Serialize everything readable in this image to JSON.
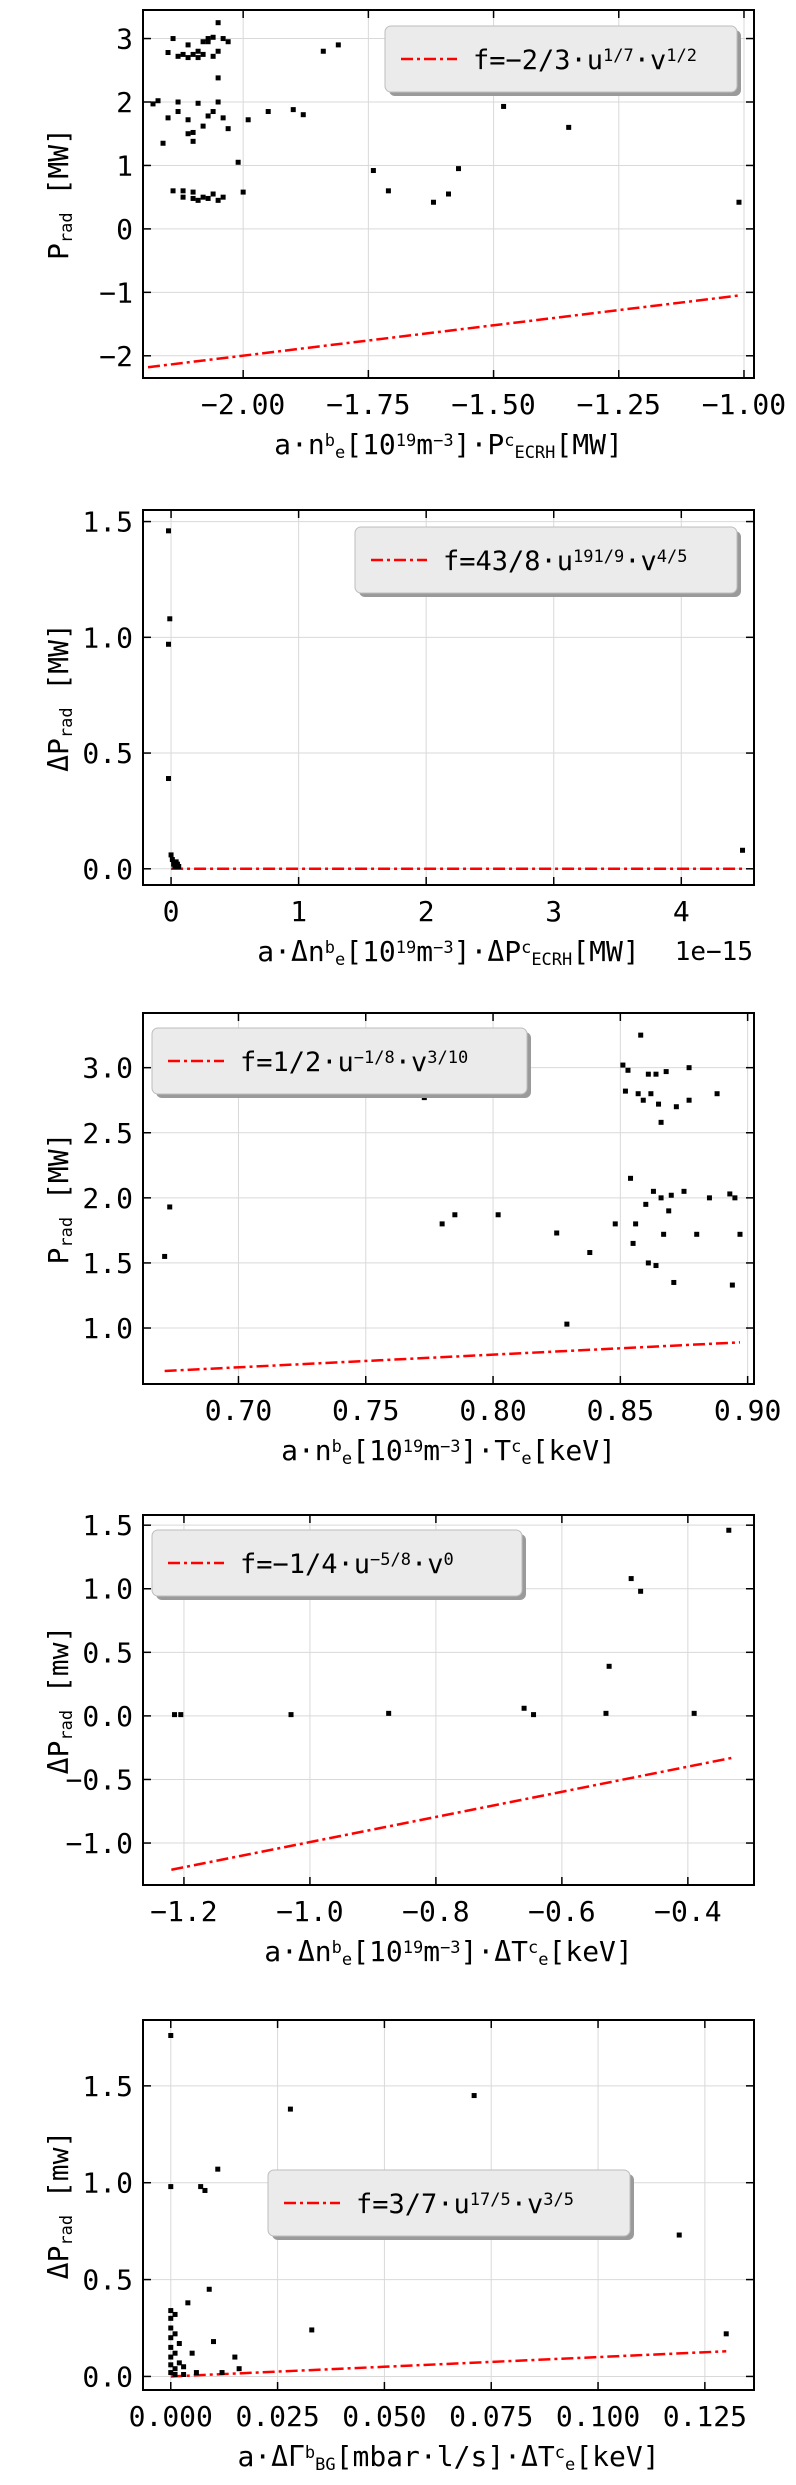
{
  "chart_data": [
    {
      "type": "scatter",
      "title": "",
      "xlabel": {
        "parts": [
          [
            "t",
            "a·n"
          ],
          [
            "sup",
            "b"
          ],
          [
            "sub",
            "e"
          ],
          [
            "t",
            "[10"
          ],
          [
            "sup",
            "19"
          ],
          [
            "t",
            "m"
          ],
          [
            "sup",
            "−3"
          ],
          [
            "t",
            "]·P"
          ],
          [
            "sup",
            "c"
          ],
          [
            "sub",
            "ECRH"
          ],
          [
            "t",
            "[MW]"
          ]
        ]
      },
      "ylabel": {
        "parts": [
          [
            "t",
            "P"
          ],
          [
            "sub",
            "rad"
          ],
          [
            "t",
            "  [MW]"
          ]
        ]
      },
      "xlim": [
        -2.2,
        -0.98
      ],
      "ylim": [
        -2.35,
        3.45
      ],
      "xticks": [
        -2.0,
        -1.75,
        -1.5,
        -1.25,
        -1.0
      ],
      "xtick_labels": [
        "−2.00",
        "−1.75",
        "−1.50",
        "−1.25",
        "−1.00"
      ],
      "yticks": [
        -2,
        -1,
        0,
        1,
        2,
        3
      ],
      "ytick_labels": [
        "−2",
        "−1",
        "0",
        "1",
        "2",
        "3"
      ],
      "x_offset_text": "",
      "grid": true,
      "legend": {
        "position": "upper-right",
        "parts": [
          [
            "t",
            "f=−2/3·u"
          ],
          [
            "sup",
            "1/7"
          ],
          [
            "t",
            "·v"
          ],
          [
            "sup",
            "1/2"
          ]
        ]
      },
      "line": {
        "name": "f",
        "x": [
          -2.19,
          -1.01
        ],
        "y": [
          -2.18,
          -1.05
        ],
        "color": "#ff0000",
        "style": "dashdot"
      },
      "points": [
        [
          -2.18,
          1.97
        ],
        [
          -2.17,
          2.02
        ],
        [
          -2.16,
          1.35
        ],
        [
          -2.15,
          1.75
        ],
        [
          -2.15,
          2.78
        ],
        [
          -2.14,
          0.6
        ],
        [
          -2.14,
          3.0
        ],
        [
          -2.13,
          2.0
        ],
        [
          -2.13,
          2.72
        ],
        [
          -2.13,
          1.85
        ],
        [
          -2.12,
          2.75
        ],
        [
          -2.12,
          0.5
        ],
        [
          -2.12,
          0.6
        ],
        [
          -2.11,
          2.7
        ],
        [
          -2.11,
          1.5
        ],
        [
          -2.11,
          2.9
        ],
        [
          -2.11,
          1.72
        ],
        [
          -2.1,
          0.48
        ],
        [
          -2.1,
          2.75
        ],
        [
          -2.1,
          1.38
        ],
        [
          -2.1,
          1.52
        ],
        [
          -2.1,
          0.58
        ],
        [
          -2.09,
          0.45
        ],
        [
          -2.09,
          2.8
        ],
        [
          -2.09,
          1.98
        ],
        [
          -2.09,
          2.7
        ],
        [
          -2.08,
          2.95
        ],
        [
          -2.08,
          2.75
        ],
        [
          -2.08,
          0.5
        ],
        [
          -2.08,
          1.62
        ],
        [
          -2.07,
          0.48
        ],
        [
          -2.07,
          1.78
        ],
        [
          -2.07,
          3.0
        ],
        [
          -2.07,
          2.95
        ],
        [
          -2.06,
          2.72
        ],
        [
          -2.06,
          0.55
        ],
        [
          -2.06,
          1.85
        ],
        [
          -2.06,
          3.02
        ],
        [
          -2.05,
          2.0
        ],
        [
          -2.05,
          2.38
        ],
        [
          -2.05,
          0.45
        ],
        [
          -2.05,
          3.25
        ],
        [
          -2.05,
          2.8
        ],
        [
          -2.04,
          1.75
        ],
        [
          -2.04,
          0.5
        ],
        [
          -2.04,
          3.0
        ],
        [
          -2.03,
          1.58
        ],
        [
          -2.03,
          2.95
        ],
        [
          -2.01,
          1.05
        ],
        [
          -2.0,
          0.58
        ],
        [
          -1.99,
          1.72
        ],
        [
          -1.95,
          1.85
        ],
        [
          -1.9,
          1.88
        ],
        [
          -1.88,
          1.8
        ],
        [
          -1.84,
          2.8
        ],
        [
          -1.81,
          2.9
        ],
        [
          -1.74,
          0.92
        ],
        [
          -1.71,
          0.6
        ],
        [
          -1.62,
          0.42
        ],
        [
          -1.59,
          0.55
        ],
        [
          -1.57,
          0.95
        ],
        [
          -1.48,
          1.93
        ],
        [
          -1.35,
          1.6
        ],
        [
          -1.01,
          0.42
        ]
      ]
    },
    {
      "type": "scatter",
      "title": "",
      "xlabel": {
        "parts": [
          [
            "t",
            "a·Δn"
          ],
          [
            "sup",
            "b"
          ],
          [
            "sub",
            "e"
          ],
          [
            "t",
            "[10"
          ],
          [
            "sup",
            "19"
          ],
          [
            "t",
            "m"
          ],
          [
            "sup",
            "−3"
          ],
          [
            "t",
            "]·ΔP"
          ],
          [
            "sup",
            "c"
          ],
          [
            "sub",
            "ECRH"
          ],
          [
            "t",
            "[MW]"
          ]
        ]
      },
      "ylabel": {
        "parts": [
          [
            "t",
            "ΔP"
          ],
          [
            "sub",
            "rad"
          ],
          [
            "t",
            "  [MW]"
          ]
        ]
      },
      "xlim": [
        -0.22,
        4.57
      ],
      "ylim": [
        -0.07,
        1.55
      ],
      "xticks": [
        0,
        1,
        2,
        3,
        4
      ],
      "xtick_labels": [
        "0",
        "1",
        "2",
        "3",
        "4"
      ],
      "yticks": [
        0.0,
        0.5,
        1.0,
        1.5
      ],
      "ytick_labels": [
        "0.0",
        "0.5",
        "1.0",
        "1.5"
      ],
      "x_offset_text": "1e−15",
      "grid": true,
      "legend": {
        "position": "upper-right",
        "parts": [
          [
            "t",
            "f=43/8·u"
          ],
          [
            "sup",
            "191/9"
          ],
          [
            "t",
            "·v"
          ],
          [
            "sup",
            "4/5"
          ]
        ]
      },
      "line": {
        "name": "f",
        "x": [
          0.0,
          4.5
        ],
        "y": [
          0.0,
          0.0
        ],
        "color": "#ff0000",
        "style": "dashdot"
      },
      "points": [
        [
          -0.02,
          1.46
        ],
        [
          -0.01,
          1.08
        ],
        [
          -0.02,
          0.97
        ],
        [
          -0.02,
          0.39
        ],
        [
          0.0,
          0.06
        ],
        [
          0.01,
          0.04
        ],
        [
          0.02,
          0.02
        ],
        [
          0.03,
          0.01
        ],
        [
          0.04,
          0.03
        ],
        [
          0.05,
          0.02
        ],
        [
          0.06,
          0.01
        ],
        [
          4.48,
          0.08
        ]
      ]
    },
    {
      "type": "scatter",
      "title": "",
      "xlabel": {
        "parts": [
          [
            "t",
            "a·n"
          ],
          [
            "sup",
            "b"
          ],
          [
            "sub",
            "e"
          ],
          [
            "t",
            "[10"
          ],
          [
            "sup",
            "19"
          ],
          [
            "t",
            "m"
          ],
          [
            "sup",
            "−3"
          ],
          [
            "t",
            "]·T"
          ],
          [
            "sup",
            "c"
          ],
          [
            "sub",
            "e"
          ],
          [
            "t",
            "[keV]"
          ]
        ]
      },
      "ylabel": {
        "parts": [
          [
            "t",
            "P"
          ],
          [
            "sub",
            "rad"
          ],
          [
            "t",
            "  [MW]"
          ]
        ]
      },
      "xlim": [
        0.6625,
        0.9025
      ],
      "ylim": [
        0.57,
        3.42
      ],
      "xticks": [
        0.7,
        0.75,
        0.8,
        0.85,
        0.9
      ],
      "xtick_labels": [
        "0.70",
        "0.75",
        "0.80",
        "0.85",
        "0.90"
      ],
      "yticks": [
        1.0,
        1.5,
        2.0,
        2.5,
        3.0
      ],
      "ytick_labels": [
        "1.0",
        "1.5",
        "2.0",
        "2.5",
        "3.0"
      ],
      "x_offset_text": "",
      "grid": true,
      "legend": {
        "position": "upper-left",
        "parts": [
          [
            "t",
            "f=1/2·u"
          ],
          [
            "sup",
            "−1/8"
          ],
          [
            "t",
            "·v"
          ],
          [
            "sup",
            "3/10"
          ]
        ]
      },
      "line": {
        "name": "f",
        "x": [
          0.671,
          0.897
        ],
        "y": [
          0.67,
          0.89
        ],
        "color": "#ff0000",
        "style": "dashdot"
      },
      "points": [
        [
          0.671,
          1.55
        ],
        [
          0.673,
          1.93
        ],
        [
          0.77,
          2.9
        ],
        [
          0.773,
          2.77
        ],
        [
          0.78,
          1.8
        ],
        [
          0.785,
          1.87
        ],
        [
          0.802,
          1.87
        ],
        [
          0.825,
          1.73
        ],
        [
          0.829,
          1.03
        ],
        [
          0.838,
          1.58
        ],
        [
          0.848,
          1.8
        ],
        [
          0.851,
          3.02
        ],
        [
          0.852,
          2.82
        ],
        [
          0.853,
          2.98
        ],
        [
          0.854,
          2.15
        ],
        [
          0.855,
          1.65
        ],
        [
          0.856,
          1.8
        ],
        [
          0.857,
          2.8
        ],
        [
          0.858,
          3.25
        ],
        [
          0.859,
          2.75
        ],
        [
          0.86,
          1.95
        ],
        [
          0.861,
          2.95
        ],
        [
          0.861,
          1.5
        ],
        [
          0.862,
          2.8
        ],
        [
          0.863,
          2.05
        ],
        [
          0.864,
          2.95
        ],
        [
          0.864,
          1.48
        ],
        [
          0.865,
          2.72
        ],
        [
          0.866,
          2.0
        ],
        [
          0.866,
          2.58
        ],
        [
          0.867,
          1.72
        ],
        [
          0.868,
          2.97
        ],
        [
          0.869,
          1.9
        ],
        [
          0.87,
          2.02
        ],
        [
          0.871,
          1.35
        ],
        [
          0.872,
          2.7
        ],
        [
          0.875,
          2.05
        ],
        [
          0.877,
          3.0
        ],
        [
          0.877,
          2.75
        ],
        [
          0.88,
          1.72
        ],
        [
          0.885,
          2.0
        ],
        [
          0.888,
          2.8
        ],
        [
          0.893,
          2.03
        ],
        [
          0.894,
          1.33
        ],
        [
          0.895,
          2.0
        ],
        [
          0.897,
          1.72
        ]
      ]
    },
    {
      "type": "scatter",
      "title": "",
      "xlabel": {
        "parts": [
          [
            "t",
            "a·Δn"
          ],
          [
            "sup",
            "b"
          ],
          [
            "sub",
            "e"
          ],
          [
            "t",
            "[10"
          ],
          [
            "sup",
            "19"
          ],
          [
            "t",
            "m"
          ],
          [
            "sup",
            "−3"
          ],
          [
            "t",
            "]·ΔT"
          ],
          [
            "sup",
            "c"
          ],
          [
            "sub",
            "e"
          ],
          [
            "t",
            "[keV]"
          ]
        ]
      },
      "ylabel": {
        "parts": [
          [
            "t",
            "ΔP"
          ],
          [
            "sub",
            "rad"
          ],
          [
            "t",
            "  [mw]"
          ]
        ]
      },
      "xlim": [
        -1.265,
        -0.295
      ],
      "ylim": [
        -1.33,
        1.58
      ],
      "xticks": [
        -1.2,
        -1.0,
        -0.8,
        -0.6,
        -0.4
      ],
      "xtick_labels": [
        "−1.2",
        "−1.0",
        "−0.8",
        "−0.6",
        "−0.4"
      ],
      "yticks": [
        -1.0,
        -0.5,
        0.0,
        0.5,
        1.0,
        1.5
      ],
      "ytick_labels": [
        "−1.0",
        "−0.5",
        "0.0",
        "0.5",
        "1.0",
        "1.5"
      ],
      "x_offset_text": "",
      "grid": true,
      "legend": {
        "position": "upper-left",
        "parts": [
          [
            "t",
            "f=−1/4·u"
          ],
          [
            "sup",
            "−5/8"
          ],
          [
            "t",
            "·v"
          ],
          [
            "sup",
            "0"
          ]
        ]
      },
      "line": {
        "name": "f",
        "x": [
          -1.22,
          -0.33
        ],
        "y": [
          -1.21,
          -0.33
        ],
        "color": "#ff0000",
        "style": "dashdot"
      },
      "points": [
        [
          -1.215,
          0.01
        ],
        [
          -1.205,
          0.01
        ],
        [
          -1.03,
          0.01
        ],
        [
          -0.875,
          0.02
        ],
        [
          -0.66,
          0.06
        ],
        [
          -0.645,
          0.01
        ],
        [
          -0.53,
          0.02
        ],
        [
          -0.525,
          0.39
        ],
        [
          -0.49,
          1.08
        ],
        [
          -0.475,
          0.98
        ],
        [
          -0.39,
          0.02
        ],
        [
          -0.335,
          1.46
        ]
      ]
    },
    {
      "type": "scatter",
      "title": "",
      "xlabel": {
        "parts": [
          [
            "t",
            "a·ΔΓ"
          ],
          [
            "sup",
            "b"
          ],
          [
            "sub",
            "BG"
          ],
          [
            "t",
            "[mbar·l/s]·ΔT"
          ],
          [
            "sup",
            "c"
          ],
          [
            "sub",
            "e"
          ],
          [
            "t",
            "[keV]"
          ]
        ]
      },
      "ylabel": {
        "parts": [
          [
            "t",
            "ΔP"
          ],
          [
            "sub",
            "rad"
          ],
          [
            "t",
            "  [mw]"
          ]
        ]
      },
      "xlim": [
        -0.0065,
        0.1365
      ],
      "ylim": [
        -0.07,
        1.84
      ],
      "xticks": [
        0.0,
        0.025,
        0.05,
        0.075,
        0.1,
        0.125
      ],
      "xtick_labels": [
        "0.000",
        "0.025",
        "0.050",
        "0.075",
        "0.100",
        "0.125"
      ],
      "yticks": [
        0.0,
        0.5,
        1.0,
        1.5
      ],
      "ytick_labels": [
        "0.0",
        "0.5",
        "1.0",
        "1.5"
      ],
      "x_offset_text": "",
      "grid": true,
      "legend": {
        "position": "center-right",
        "parts": [
          [
            "t",
            "f=3/7·u"
          ],
          [
            "sup",
            "17/5"
          ],
          [
            "t",
            "·v"
          ],
          [
            "sup",
            "3/5"
          ]
        ]
      },
      "line": {
        "name": "f",
        "x": [
          0.0,
          0.13
        ],
        "y": [
          0.0,
          0.13
        ],
        "color": "#ff0000",
        "style": "dashdot"
      },
      "points": [
        [
          0.0,
          1.76
        ],
        [
          0.0,
          0.98
        ],
        [
          0.0,
          0.34
        ],
        [
          0.0,
          0.3
        ],
        [
          0.0,
          0.25
        ],
        [
          0.0,
          0.2
        ],
        [
          0.0,
          0.15
        ],
        [
          0.0,
          0.1
        ],
        [
          0.0,
          0.06
        ],
        [
          0.0,
          0.02
        ],
        [
          0.001,
          0.32
        ],
        [
          0.001,
          0.22
        ],
        [
          0.001,
          0.12
        ],
        [
          0.001,
          0.04
        ],
        [
          0.001,
          0.01
        ],
        [
          0.002,
          0.17
        ],
        [
          0.002,
          0.07
        ],
        [
          0.003,
          0.01
        ],
        [
          0.003,
          0.05
        ],
        [
          0.004,
          0.38
        ],
        [
          0.005,
          0.12
        ],
        [
          0.006,
          0.02
        ],
        [
          0.007,
          0.98
        ],
        [
          0.008,
          0.96
        ],
        [
          0.009,
          0.45
        ],
        [
          0.01,
          0.18
        ],
        [
          0.011,
          1.07
        ],
        [
          0.012,
          0.02
        ],
        [
          0.015,
          0.1
        ],
        [
          0.016,
          0.04
        ],
        [
          0.028,
          1.38
        ],
        [
          0.033,
          0.24
        ],
        [
          0.071,
          1.45
        ],
        [
          0.119,
          0.73
        ],
        [
          0.13,
          0.22
        ]
      ]
    }
  ]
}
